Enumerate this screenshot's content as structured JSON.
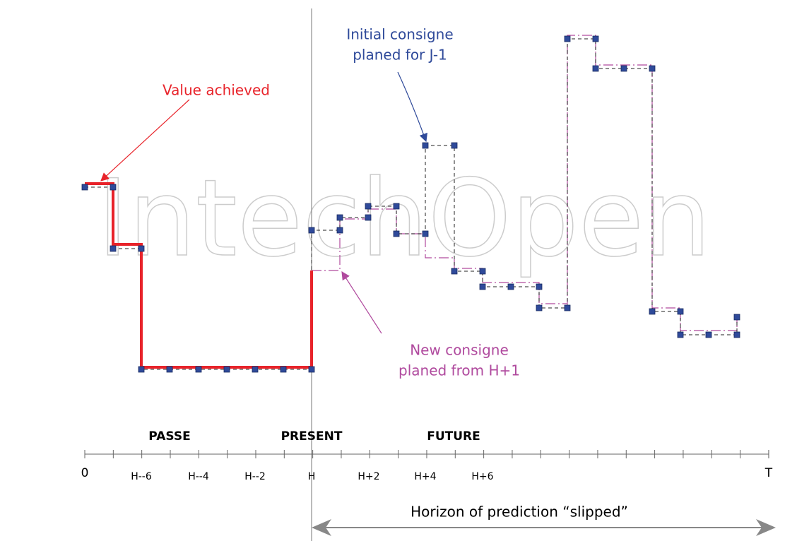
{
  "watermark": "IntechOpen",
  "annotations": {
    "value_achieved": "Value achieved",
    "initial": [
      "Initial consigne",
      "planed for J-1"
    ],
    "new": [
      "New consigne",
      "planed from H+1"
    ]
  },
  "periods": [
    "PASSE",
    "PRESENT",
    "FUTURE"
  ],
  "axis": {
    "start": "0",
    "end": "T",
    "ticks": [
      "H--6",
      "H--4",
      "H--2",
      "H",
      "H+2",
      "H+4",
      "H+6"
    ]
  },
  "horizon": "Horizon of prediction “slipped”"
}
